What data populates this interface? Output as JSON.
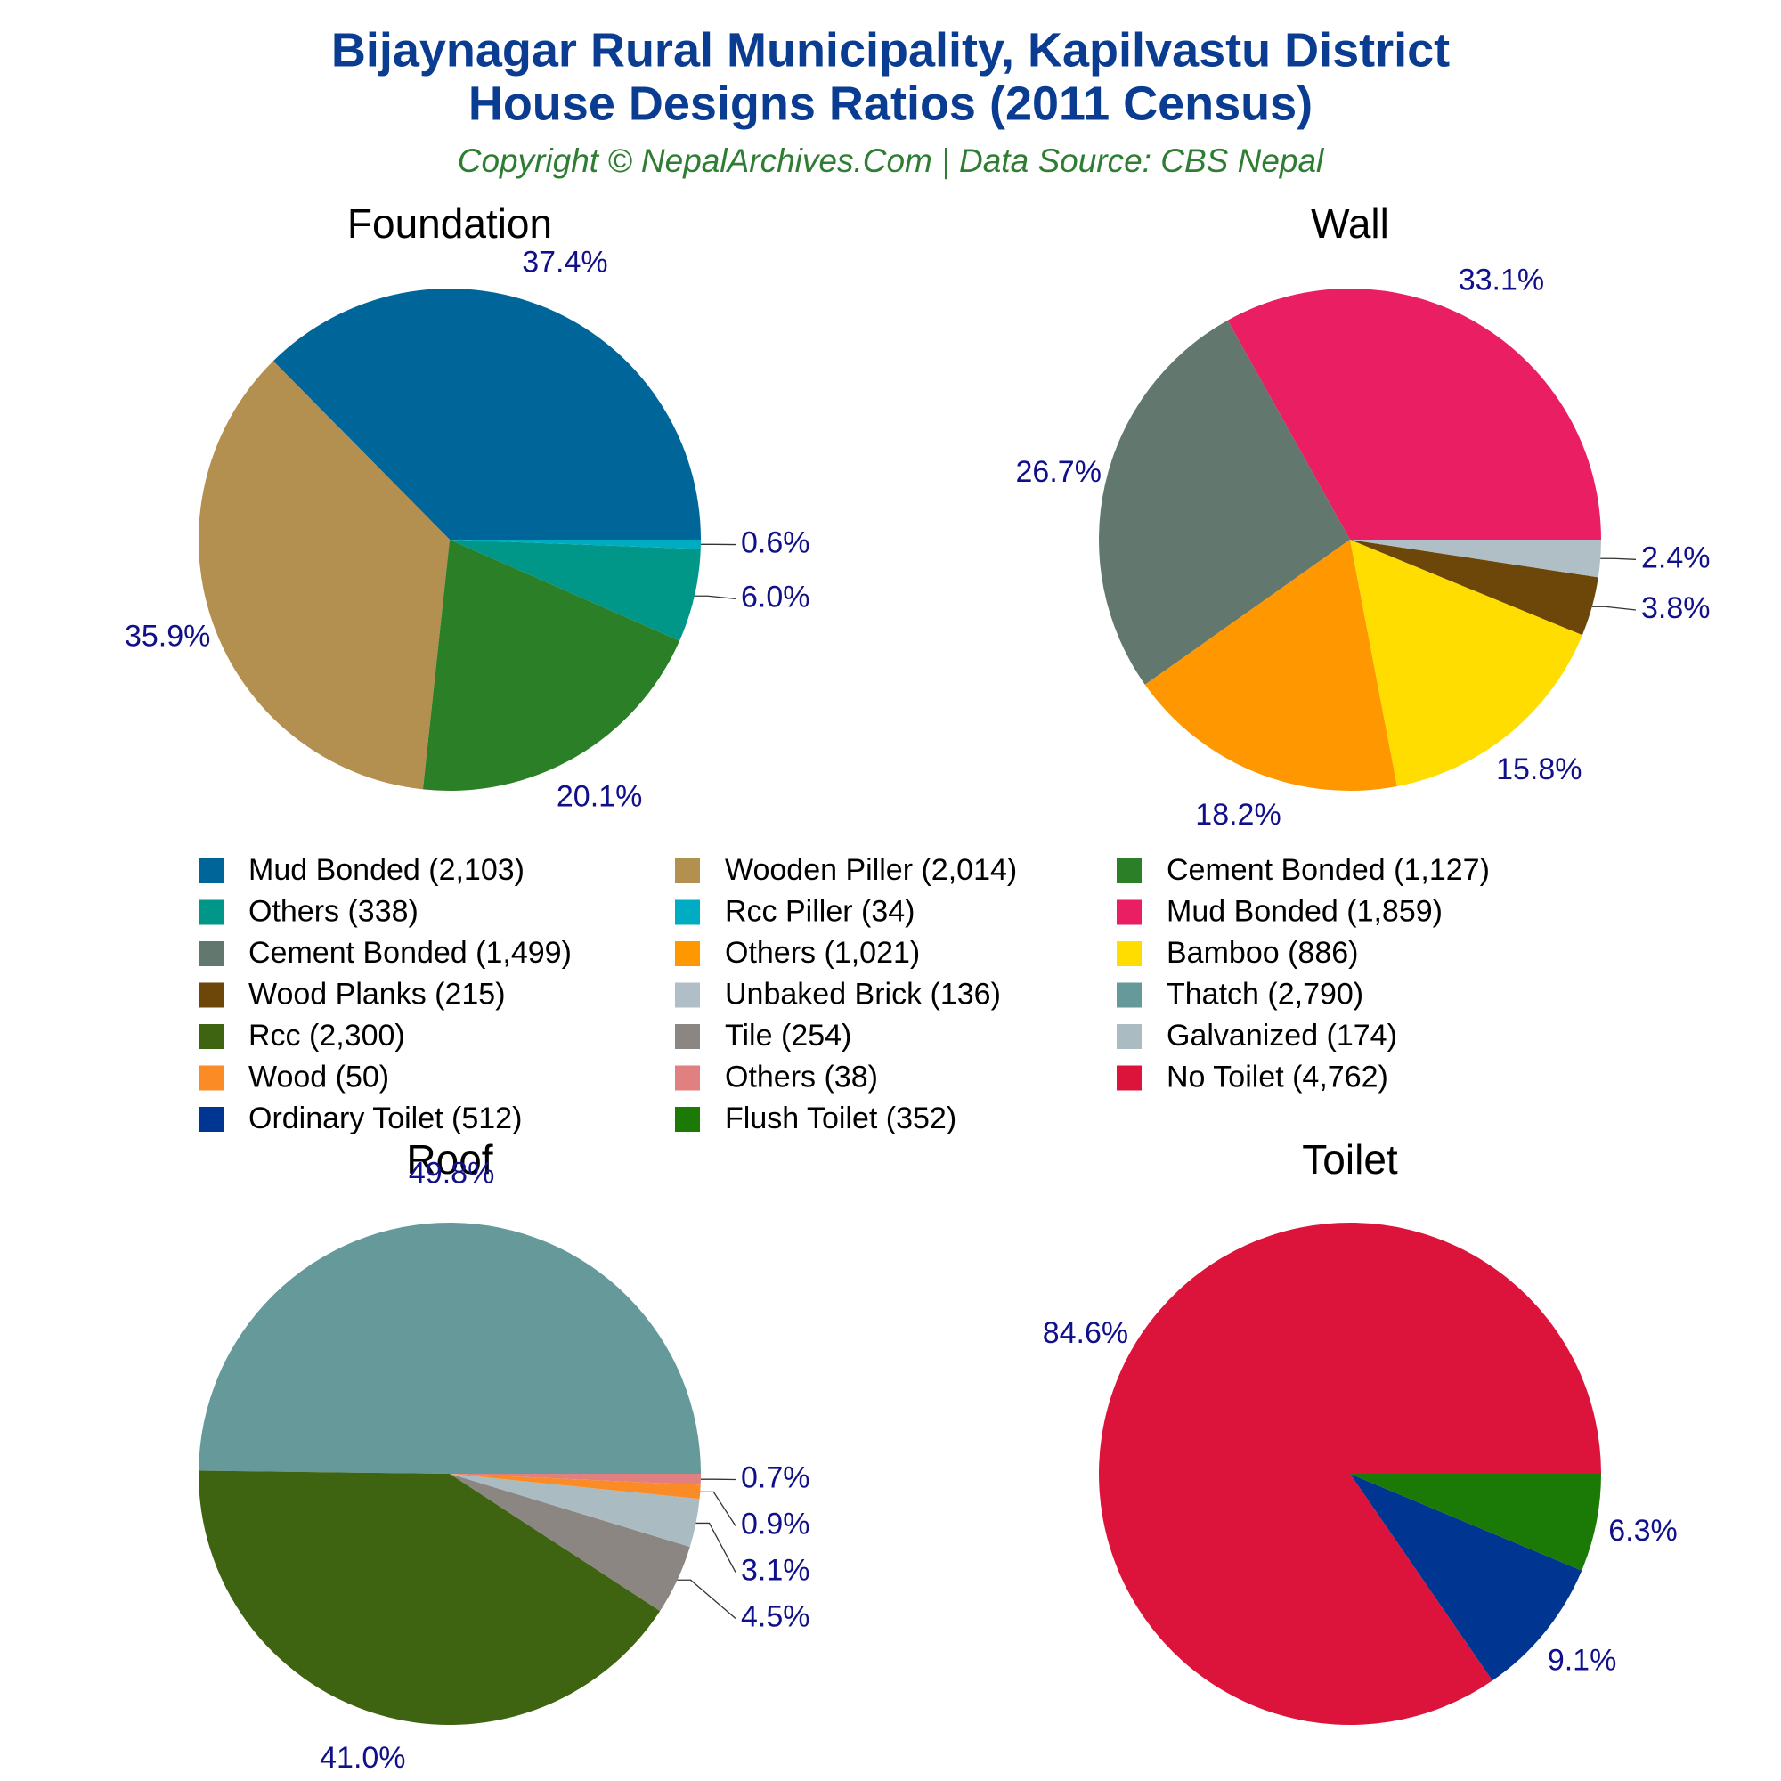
{
  "title": "Bijaynagar Rural Municipality, Kapilvastu District",
  "title2": "House Designs Ratios (2011 Census)",
  "subtitle": "Copyright © NepalArchives.Com | Data Source: CBS Nepal",
  "chart_data": [
    {
      "type": "pie",
      "title": "Foundation",
      "categories": [
        "Mud Bonded (2,103)",
        "Wooden Piller (2,014)",
        "Cement Bonded (1,127)",
        "Others (338)",
        "Rcc Piller (34)"
      ],
      "values": [
        37.4,
        35.9,
        20.1,
        6.0,
        0.6
      ],
      "value_labels": [
        "37.4%",
        "35.9%",
        "20.1%",
        "6.0%",
        "0.6%"
      ],
      "colors": [
        "#006699",
        "#b38f50",
        "#2b7f26",
        "#009688",
        "#00acc1"
      ]
    },
    {
      "type": "pie",
      "title": "Wall",
      "categories": [
        "Mud Bonded (1,859)",
        "Cement Bonded (1,499)",
        "Others (1,021)",
        "Bamboo (886)",
        "Wood Planks (215)",
        "Unbaked Brick (136)"
      ],
      "values": [
        33.1,
        26.7,
        18.2,
        15.8,
        3.8,
        2.4
      ],
      "value_labels": [
        "33.1%",
        "26.7%",
        "18.2%",
        "15.8%",
        "3.8%",
        "2.4%"
      ],
      "colors": [
        "#e91e63",
        "#62786f",
        "#ff9800",
        "#ffdd00",
        "#6d4709",
        "#b0bec5"
      ]
    },
    {
      "type": "pie",
      "title": "Roof",
      "categories": [
        "Thatch (2,790)",
        "Rcc (2,300)",
        "Tile (254)",
        "Galvanized (174)",
        "Wood (50)",
        "Others (38)"
      ],
      "values": [
        49.8,
        41.0,
        4.5,
        3.1,
        0.9,
        0.7
      ],
      "value_labels": [
        "49.8%",
        "41.0%",
        "4.5%",
        "3.1%",
        "0.9%",
        "0.7%"
      ],
      "colors": [
        "#669999",
        "#3e6412",
        "#8c8682",
        "#aabbc2",
        "#fb8b24",
        "#e08080"
      ]
    },
    {
      "type": "pie",
      "title": "Toilet",
      "categories": [
        "No Toilet (4,762)",
        "Ordinary Toilet (512)",
        "Flush Toilet (352)"
      ],
      "values": [
        84.6,
        9.1,
        6.3
      ],
      "value_labels": [
        "84.6%",
        "9.1%",
        "6.3%"
      ],
      "colors": [
        "#dc143c",
        "#003591",
        "#1b7a06"
      ]
    }
  ]
}
